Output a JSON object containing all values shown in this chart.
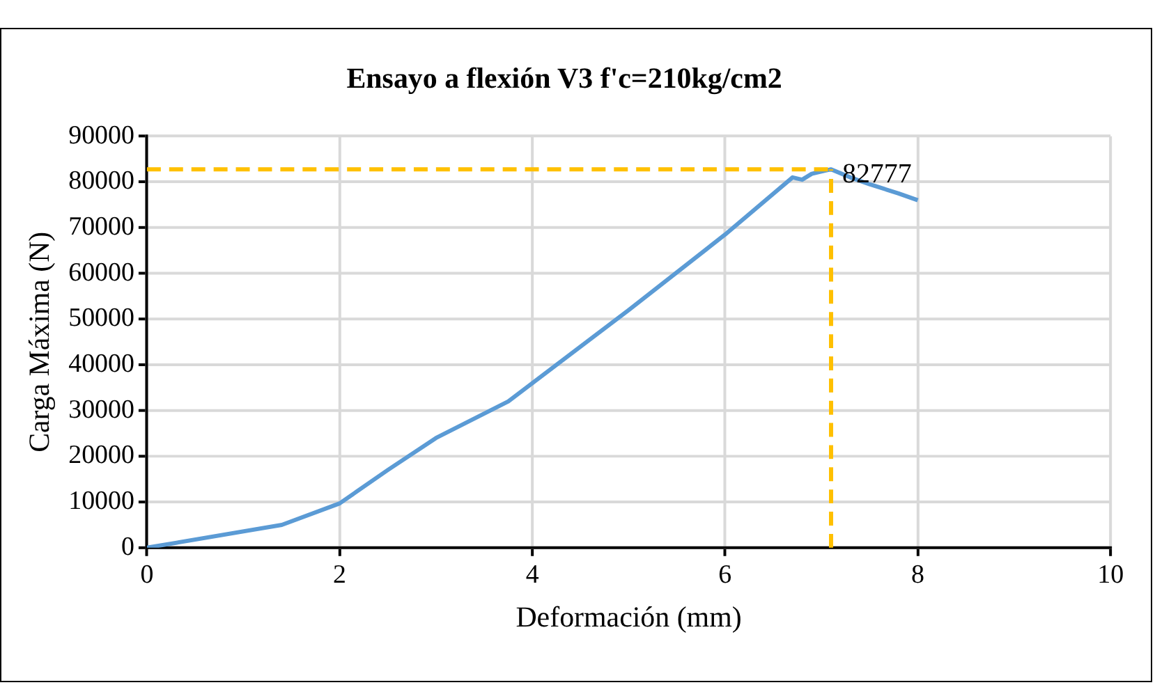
{
  "chart_data": {
    "type": "line",
    "title": "Ensayo a flexión V3 f'c=210kg/cm2",
    "xlabel": "Deformación (mm)",
    "ylabel": "Carga Máxima (N)",
    "series": [
      {
        "color": "#5b9bd5",
        "x": [
          0,
          1.4,
          2,
          2.5,
          3,
          3.75,
          4,
          5,
          6,
          6.7,
          6.8,
          6.9,
          7.1,
          7.3,
          7.5,
          7.8,
          8
        ],
        "values": [
          0,
          5000,
          9700,
          17000,
          24000,
          32000,
          36000,
          52000,
          68500,
          81000,
          80500,
          81800,
          82777,
          81000,
          79500,
          77500,
          76000
        ]
      }
    ],
    "xlim": [
      0,
      10
    ],
    "xticks": [
      0,
      2,
      4,
      6,
      8,
      10
    ],
    "ylim": [
      0,
      90000
    ],
    "yticks": [
      0,
      10000,
      20000,
      30000,
      40000,
      50000,
      60000,
      70000,
      80000,
      90000
    ],
    "grid": true,
    "legend": false,
    "marker": "none",
    "line_style": "solid",
    "ref_lines": [
      {
        "axis": "y",
        "value": 82777,
        "color": "#ffc000",
        "line_style": "dashed"
      },
      {
        "axis": "x",
        "value": 7.1,
        "color": "#ffc000",
        "line_style": "dashed"
      }
    ],
    "annotations": [
      {
        "text": "82777",
        "x": 7.1,
        "y": 82777
      }
    ]
  }
}
